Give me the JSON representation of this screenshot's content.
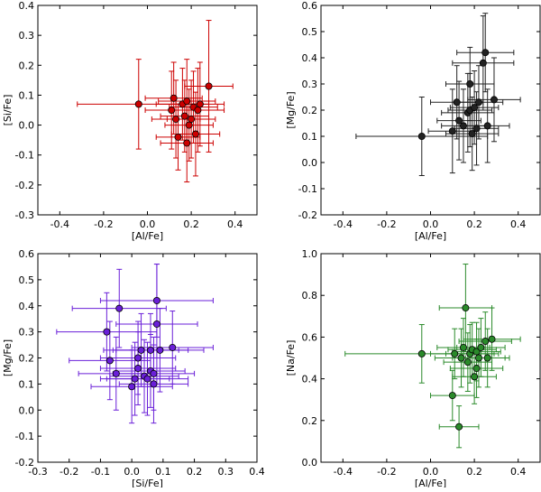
{
  "chart_data": [
    {
      "type": "scatter",
      "color": "#cc0000",
      "xlabel": "[Al/Fe]",
      "ylabel": "[Si/Fe]",
      "xlim": [
        -0.5,
        0.5
      ],
      "ylim": [
        -0.3,
        0.4
      ],
      "xticks": [
        "-0.4",
        "-0.2",
        "0.0",
        "0.2",
        "0.4"
      ],
      "yticks": [
        "-0.3",
        "-0.2",
        "-0.1",
        "0.0",
        "0.1",
        "0.2",
        "0.3",
        "0.4"
      ],
      "points": [
        {
          "x": -0.04,
          "y": 0.07,
          "xerr": 0.28,
          "yerr": 0.15
        },
        {
          "x": 0.11,
          "y": 0.05,
          "xerr": 0.12,
          "yerr": 0.13
        },
        {
          "x": 0.12,
          "y": 0.09,
          "xerr": 0.13,
          "yerr": 0.12
        },
        {
          "x": 0.13,
          "y": 0.02,
          "xerr": 0.11,
          "yerr": 0.13
        },
        {
          "x": 0.14,
          "y": -0.04,
          "xerr": 0.1,
          "yerr": 0.11
        },
        {
          "x": 0.16,
          "y": 0.07,
          "xerr": 0.12,
          "yerr": 0.12
        },
        {
          "x": 0.17,
          "y": 0.03,
          "xerr": 0.11,
          "yerr": 0.12
        },
        {
          "x": 0.18,
          "y": -0.06,
          "xerr": 0.12,
          "yerr": 0.13
        },
        {
          "x": 0.18,
          "y": 0.08,
          "xerr": 0.13,
          "yerr": 0.14
        },
        {
          "x": 0.19,
          "y": 0.0,
          "xerr": 0.11,
          "yerr": 0.12
        },
        {
          "x": 0.2,
          "y": 0.02,
          "xerr": 0.11,
          "yerr": 0.13
        },
        {
          "x": 0.21,
          "y": 0.06,
          "xerr": 0.11,
          "yerr": 0.12
        },
        {
          "x": 0.22,
          "y": -0.03,
          "xerr": 0.11,
          "yerr": 0.14
        },
        {
          "x": 0.23,
          "y": 0.05,
          "xerr": 0.12,
          "yerr": 0.14
        },
        {
          "x": 0.24,
          "y": 0.07,
          "xerr": 0.11,
          "yerr": 0.14
        },
        {
          "x": 0.28,
          "y": 0.13,
          "xerr": 0.11,
          "yerr": 0.22
        }
      ]
    },
    {
      "type": "scatter",
      "color": "#222222",
      "xlabel": "[Al/Fe]",
      "ylabel": "[Mg/Fe]",
      "xlim": [
        -0.5,
        0.5
      ],
      "ylim": [
        -0.2,
        0.6
      ],
      "xticks": [
        "-0.4",
        "-0.2",
        "0.0",
        "0.2",
        "0.4"
      ],
      "yticks": [
        "-0.2",
        "-0.1",
        "0.0",
        "0.1",
        "0.2",
        "0.3",
        "0.4",
        "0.5",
        "0.6"
      ],
      "points": [
        {
          "x": -0.04,
          "y": 0.1,
          "xerr": 0.3,
          "yerr": 0.15
        },
        {
          "x": 0.1,
          "y": 0.12,
          "xerr": 0.11,
          "yerr": 0.16
        },
        {
          "x": 0.12,
          "y": 0.23,
          "xerr": 0.12,
          "yerr": 0.14
        },
        {
          "x": 0.13,
          "y": 0.16,
          "xerr": 0.1,
          "yerr": 0.15
        },
        {
          "x": 0.15,
          "y": 0.14,
          "xerr": 0.1,
          "yerr": 0.14
        },
        {
          "x": 0.17,
          "y": 0.19,
          "xerr": 0.12,
          "yerr": 0.15
        },
        {
          "x": 0.18,
          "y": 0.3,
          "xerr": 0.11,
          "yerr": 0.14
        },
        {
          "x": 0.18,
          "y": 0.2,
          "xerr": 0.1,
          "yerr": 0.14
        },
        {
          "x": 0.19,
          "y": 0.11,
          "xerr": 0.12,
          "yerr": 0.14
        },
        {
          "x": 0.2,
          "y": 0.21,
          "xerr": 0.11,
          "yerr": 0.14
        },
        {
          "x": 0.21,
          "y": 0.13,
          "xerr": 0.1,
          "yerr": 0.14
        },
        {
          "x": 0.22,
          "y": 0.23,
          "xerr": 0.11,
          "yerr": 0.14
        },
        {
          "x": 0.24,
          "y": 0.38,
          "xerr": 0.14,
          "yerr": 0.18
        },
        {
          "x": 0.25,
          "y": 0.42,
          "xerr": 0.13,
          "yerr": 0.15
        },
        {
          "x": 0.26,
          "y": 0.14,
          "xerr": 0.1,
          "yerr": 0.14
        },
        {
          "x": 0.29,
          "y": 0.24,
          "xerr": 0.12,
          "yerr": 0.16
        }
      ]
    },
    {
      "type": "scatter",
      "color": "#6a1fd8",
      "xlabel": "[Si/Fe]",
      "ylabel": "[Mg/Fe]",
      "xlim": [
        -0.3,
        0.4
      ],
      "ylim": [
        -0.2,
        0.6
      ],
      "xticks": [
        "-0.3",
        "-0.2",
        "-0.1",
        "0.0",
        "0.1",
        "0.2",
        "0.3",
        "0.4"
      ],
      "yticks": [
        "-0.2",
        "-0.1",
        "0.0",
        "0.1",
        "0.2",
        "0.3",
        "0.4",
        "0.5",
        "0.6"
      ],
      "points": [
        {
          "x": -0.08,
          "y": 0.3,
          "xerr": 0.16,
          "yerr": 0.15
        },
        {
          "x": -0.07,
          "y": 0.19,
          "xerr": 0.13,
          "yerr": 0.15
        },
        {
          "x": -0.05,
          "y": 0.14,
          "xerr": 0.12,
          "yerr": 0.14
        },
        {
          "x": -0.04,
          "y": 0.39,
          "xerr": 0.15,
          "yerr": 0.15
        },
        {
          "x": 0.0,
          "y": 0.09,
          "xerr": 0.13,
          "yerr": 0.14
        },
        {
          "x": 0.01,
          "y": 0.12,
          "xerr": 0.11,
          "yerr": 0.14
        },
        {
          "x": 0.02,
          "y": 0.16,
          "xerr": 0.12,
          "yerr": 0.14
        },
        {
          "x": 0.02,
          "y": 0.2,
          "xerr": 0.12,
          "yerr": 0.14
        },
        {
          "x": 0.03,
          "y": 0.23,
          "xerr": 0.12,
          "yerr": 0.14
        },
        {
          "x": 0.04,
          "y": 0.13,
          "xerr": 0.11,
          "yerr": 0.14
        },
        {
          "x": 0.05,
          "y": 0.12,
          "xerr": 0.13,
          "yerr": 0.14
        },
        {
          "x": 0.06,
          "y": 0.23,
          "xerr": 0.12,
          "yerr": 0.14
        },
        {
          "x": 0.06,
          "y": 0.15,
          "xerr": 0.11,
          "yerr": 0.14
        },
        {
          "x": 0.07,
          "y": 0.1,
          "xerr": 0.11,
          "yerr": 0.15
        },
        {
          "x": 0.07,
          "y": 0.14,
          "xerr": 0.13,
          "yerr": 0.14
        },
        {
          "x": 0.08,
          "y": 0.42,
          "xerr": 0.18,
          "yerr": 0.14
        },
        {
          "x": 0.08,
          "y": 0.33,
          "xerr": 0.13,
          "yerr": 0.23
        },
        {
          "x": 0.09,
          "y": 0.23,
          "xerr": 0.14,
          "yerr": 0.16
        },
        {
          "x": 0.13,
          "y": 0.24,
          "xerr": 0.13,
          "yerr": 0.14
        }
      ]
    },
    {
      "type": "scatter",
      "color": "#2a8a2a",
      "xlabel": "[Al/Fe]",
      "ylabel": "[Na/Fe]",
      "xlim": [
        -0.5,
        0.5
      ],
      "ylim": [
        0.0,
        1.0
      ],
      "xticks": [
        "-0.4",
        "-0.2",
        "0.0",
        "0.2",
        "0.4"
      ],
      "yticks": [
        "0.0",
        "0.2",
        "0.4",
        "0.6",
        "0.8",
        "1.0"
      ],
      "points": [
        {
          "x": -0.04,
          "y": 0.52,
          "xerr": 0.35,
          "yerr": 0.14
        },
        {
          "x": 0.1,
          "y": 0.32,
          "xerr": 0.1,
          "yerr": 0.12
        },
        {
          "x": 0.11,
          "y": 0.52,
          "xerr": 0.11,
          "yerr": 0.12
        },
        {
          "x": 0.13,
          "y": 0.17,
          "xerr": 0.09,
          "yerr": 0.1
        },
        {
          "x": 0.14,
          "y": 0.5,
          "xerr": 0.12,
          "yerr": 0.14
        },
        {
          "x": 0.15,
          "y": 0.55,
          "xerr": 0.12,
          "yerr": 0.14
        },
        {
          "x": 0.16,
          "y": 0.74,
          "xerr": 0.12,
          "yerr": 0.21
        },
        {
          "x": 0.17,
          "y": 0.48,
          "xerr": 0.11,
          "yerr": 0.14
        },
        {
          "x": 0.18,
          "y": 0.52,
          "xerr": 0.11,
          "yerr": 0.14
        },
        {
          "x": 0.19,
          "y": 0.54,
          "xerr": 0.11,
          "yerr": 0.13
        },
        {
          "x": 0.2,
          "y": 0.41,
          "xerr": 0.1,
          "yerr": 0.13
        },
        {
          "x": 0.21,
          "y": 0.45,
          "xerr": 0.12,
          "yerr": 0.14
        },
        {
          "x": 0.21,
          "y": 0.53,
          "xerr": 0.11,
          "yerr": 0.14
        },
        {
          "x": 0.22,
          "y": 0.5,
          "xerr": 0.12,
          "yerr": 0.14
        },
        {
          "x": 0.23,
          "y": 0.55,
          "xerr": 0.11,
          "yerr": 0.14
        },
        {
          "x": 0.25,
          "y": 0.58,
          "xerr": 0.12,
          "yerr": 0.14
        },
        {
          "x": 0.26,
          "y": 0.5,
          "xerr": 0.1,
          "yerr": 0.14
        },
        {
          "x": 0.28,
          "y": 0.59,
          "xerr": 0.13,
          "yerr": 0.15
        }
      ]
    }
  ]
}
